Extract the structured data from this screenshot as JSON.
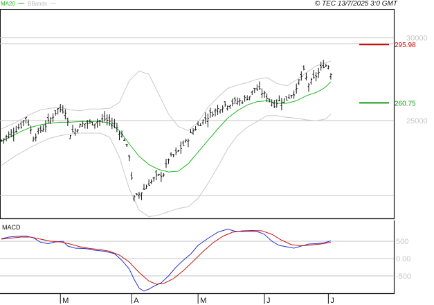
{
  "header": {
    "credit": "© TEC 13/7/2025 3:0 GMT",
    "legend": [
      {
        "label": "MA20",
        "color": "#22b522"
      },
      {
        "label": "BBands",
        "color": "#c8c8c8"
      }
    ]
  },
  "colors": {
    "price_bar": "#111111",
    "ma20": "#22b522",
    "bbands": "#c8c8c8",
    "grid": "#c6c6c6",
    "resistance": "#cc0000",
    "support": "#119911",
    "macd_line": "#2233cc",
    "signal_line": "#cc1111",
    "axis_line": "#111111"
  },
  "chart_data": [
    {
      "type": "ohlc",
      "panel": "price",
      "y_ticks": [
        {
          "value": 30000,
          "label": "30000"
        },
        {
          "value": 25000,
          "label": "25000"
        }
      ],
      "ylim": [
        19100,
        31700
      ],
      "grid": true,
      "x_count": 146,
      "month_ticks": [
        {
          "label": "M",
          "index": 24
        },
        {
          "label": "A",
          "index": 53
        },
        {
          "label": "M",
          "index": 80
        },
        {
          "label": "J",
          "index": 107
        },
        {
          "label": "J",
          "index": 133
        }
      ],
      "bars": {
        "anchors": [
          [
            0,
            23800
          ],
          [
            8,
            24700
          ],
          [
            10,
            25250
          ],
          [
            13,
            24000
          ],
          [
            18,
            24700
          ],
          [
            23,
            25700
          ],
          [
            26,
            25600
          ],
          [
            28,
            24200
          ],
          [
            33,
            24800
          ],
          [
            38,
            24900
          ],
          [
            42,
            25100
          ],
          [
            46,
            24800
          ],
          [
            50,
            23900
          ],
          [
            52,
            22900
          ],
          [
            54,
            20300
          ],
          [
            57,
            20700
          ],
          [
            60,
            21200
          ],
          [
            63,
            21600
          ],
          [
            66,
            21800
          ],
          [
            68,
            22700
          ],
          [
            71,
            23000
          ],
          [
            75,
            23700
          ],
          [
            78,
            24400
          ],
          [
            82,
            25000
          ],
          [
            86,
            25500
          ],
          [
            90,
            25900
          ],
          [
            94,
            26100
          ],
          [
            98,
            26200
          ],
          [
            101,
            26500
          ],
          [
            103,
            26950
          ],
          [
            106,
            26700
          ],
          [
            109,
            26300
          ],
          [
            111,
            26000
          ],
          [
            113,
            26200
          ],
          [
            116,
            26300
          ],
          [
            118,
            26600
          ],
          [
            120,
            26800
          ],
          [
            121,
            27400
          ],
          [
            123,
            27950
          ],
          [
            125,
            27200
          ],
          [
            127,
            27500
          ],
          [
            129,
            27900
          ],
          [
            131,
            28350
          ],
          [
            133,
            28300
          ],
          [
            134,
            27900
          ]
        ],
        "volatility": 260
      },
      "ma20": [
        [
          0,
          23750
        ],
        [
          4,
          24050
        ],
        [
          8,
          24350
        ],
        [
          12,
          24600
        ],
        [
          16,
          24750
        ],
        [
          20,
          24850
        ],
        [
          24,
          24900
        ],
        [
          28,
          24900
        ],
        [
          32,
          24950
        ],
        [
          36,
          24950
        ],
        [
          40,
          24950
        ],
        [
          44,
          24850
        ],
        [
          48,
          24400
        ],
        [
          52,
          23600
        ],
        [
          56,
          22850
        ],
        [
          60,
          22350
        ],
        [
          64,
          22050
        ],
        [
          68,
          21900
        ],
        [
          72,
          21950
        ],
        [
          76,
          22400
        ],
        [
          80,
          23100
        ],
        [
          84,
          23800
        ],
        [
          88,
          24500
        ],
        [
          92,
          25150
        ],
        [
          96,
          25600
        ],
        [
          100,
          25950
        ],
        [
          104,
          26150
        ],
        [
          108,
          26200
        ],
        [
          112,
          26050
        ],
        [
          116,
          26050
        ],
        [
          120,
          26200
        ],
        [
          124,
          26500
        ],
        [
          128,
          26700
        ],
        [
          130,
          26850
        ],
        [
          132,
          27050
        ],
        [
          134,
          27350
        ]
      ],
      "bb_upper": [
        [
          0,
          24500
        ],
        [
          6,
          24900
        ],
        [
          12,
          25400
        ],
        [
          16,
          25650
        ],
        [
          20,
          25750
        ],
        [
          24,
          25800
        ],
        [
          28,
          25650
        ],
        [
          32,
          25600
        ],
        [
          36,
          25700
        ],
        [
          40,
          25700
        ],
        [
          44,
          25750
        ],
        [
          48,
          26100
        ],
        [
          52,
          27400
        ],
        [
          56,
          28000
        ],
        [
          60,
          27800
        ],
        [
          64,
          26600
        ],
        [
          68,
          25400
        ],
        [
          72,
          24650
        ],
        [
          76,
          24400
        ],
        [
          80,
          24900
        ],
        [
          84,
          25800
        ],
        [
          88,
          26400
        ],
        [
          92,
          26950
        ],
        [
          96,
          27150
        ],
        [
          100,
          27300
        ],
        [
          104,
          27500
        ],
        [
          108,
          27600
        ],
        [
          112,
          27250
        ],
        [
          116,
          27100
        ],
        [
          120,
          27450
        ],
        [
          124,
          27900
        ],
        [
          128,
          28300
        ],
        [
          132,
          28500
        ],
        [
          134,
          28600
        ]
      ],
      "bb_lower": [
        [
          0,
          22300
        ],
        [
          6,
          22900
        ],
        [
          12,
          23400
        ],
        [
          16,
          23700
        ],
        [
          20,
          23950
        ],
        [
          24,
          24100
        ],
        [
          28,
          24200
        ],
        [
          32,
          24250
        ],
        [
          36,
          24250
        ],
        [
          40,
          24250
        ],
        [
          44,
          24000
        ],
        [
          48,
          22800
        ],
        [
          52,
          20900
        ],
        [
          56,
          19600
        ],
        [
          60,
          19200
        ],
        [
          64,
          19300
        ],
        [
          68,
          19500
        ],
        [
          72,
          19700
        ],
        [
          76,
          19800
        ],
        [
          80,
          20300
        ],
        [
          84,
          21200
        ],
        [
          88,
          22200
        ],
        [
          92,
          23300
        ],
        [
          96,
          24100
        ],
        [
          100,
          24600
        ],
        [
          104,
          24950
        ],
        [
          108,
          25300
        ],
        [
          112,
          25300
        ],
        [
          116,
          25200
        ],
        [
          120,
          25150
        ],
        [
          124,
          25050
        ],
        [
          128,
          25000
        ],
        [
          132,
          25100
        ],
        [
          134,
          25400
        ]
      ],
      "levels": [
        {
          "label": "295.98",
          "value": 29598,
          "color": "#cc0000"
        },
        {
          "label": "260.75",
          "value": 26075,
          "color": "#119911"
        }
      ]
    },
    {
      "type": "line",
      "panel": "macd",
      "title": "MACD",
      "y_ticks": [
        {
          "value": 500,
          "label": "500"
        },
        {
          "value": 0,
          "label": "0.00"
        },
        {
          "value": -500,
          "label": "-500"
        }
      ],
      "ylim": [
        -1000,
        1080
      ],
      "series": [
        {
          "color": "#2233cc",
          "points": [
            [
              0,
              570
            ],
            [
              3,
              620
            ],
            [
              6,
              640
            ],
            [
              10,
              650
            ],
            [
              13,
              600
            ],
            [
              16,
              470
            ],
            [
              19,
              430
            ],
            [
              22,
              480
            ],
            [
              25,
              500
            ],
            [
              27,
              360
            ],
            [
              30,
              300
            ],
            [
              34,
              290
            ],
            [
              38,
              240
            ],
            [
              42,
              210
            ],
            [
              46,
              140
            ],
            [
              49,
              -50
            ],
            [
              52,
              -300
            ],
            [
              54,
              -600
            ],
            [
              56,
              -850
            ],
            [
              58,
              -940
            ],
            [
              60,
              -880
            ],
            [
              62,
              -800
            ],
            [
              65,
              -700
            ],
            [
              68,
              -500
            ],
            [
              71,
              -250
            ],
            [
              74,
              -50
            ],
            [
              77,
              130
            ],
            [
              80,
              380
            ],
            [
              84,
              580
            ],
            [
              88,
              760
            ],
            [
              92,
              850
            ],
            [
              95,
              790
            ],
            [
              98,
              780
            ],
            [
              101,
              790
            ],
            [
              104,
              780
            ],
            [
              107,
              700
            ],
            [
              110,
              500
            ],
            [
              113,
              380
            ],
            [
              116,
              340
            ],
            [
              119,
              300
            ],
            [
              122,
              360
            ],
            [
              125,
              420
            ],
            [
              128,
              430
            ],
            [
              131,
              450
            ],
            [
              133,
              490
            ],
            [
              134,
              510
            ]
          ]
        },
        {
          "color": "#cc1111",
          "points": [
            [
              0,
              560
            ],
            [
              4,
              590
            ],
            [
              8,
              620
            ],
            [
              12,
              620
            ],
            [
              16,
              560
            ],
            [
              20,
              500
            ],
            [
              24,
              480
            ],
            [
              28,
              420
            ],
            [
              32,
              340
            ],
            [
              36,
              290
            ],
            [
              40,
              260
            ],
            [
              44,
              210
            ],
            [
              48,
              100
            ],
            [
              52,
              -100
            ],
            [
              56,
              -400
            ],
            [
              60,
              -650
            ],
            [
              63,
              -740
            ],
            [
              66,
              -720
            ],
            [
              70,
              -580
            ],
            [
              74,
              -350
            ],
            [
              78,
              -80
            ],
            [
              82,
              200
            ],
            [
              86,
              450
            ],
            [
              90,
              640
            ],
            [
              94,
              760
            ],
            [
              98,
              800
            ],
            [
              102,
              810
            ],
            [
              106,
              800
            ],
            [
              110,
              700
            ],
            [
              114,
              530
            ],
            [
              118,
              400
            ],
            [
              122,
              370
            ],
            [
              126,
              390
            ],
            [
              130,
              420
            ],
            [
              134,
              470
            ]
          ]
        }
      ]
    }
  ]
}
